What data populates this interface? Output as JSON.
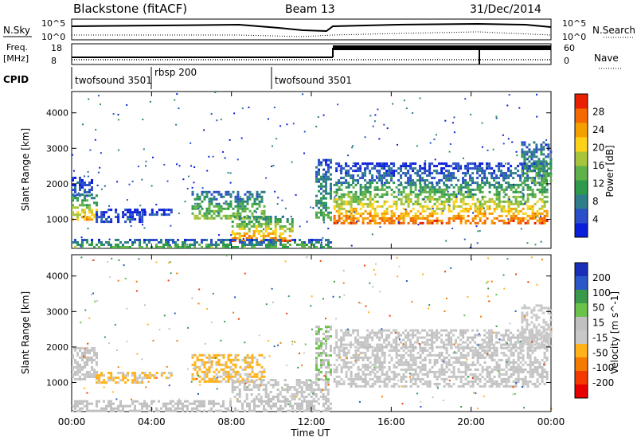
{
  "header": {
    "station": "Blackstone (fitACF)",
    "beam": "Beam 13",
    "date": "31/Dec/2014"
  },
  "top_panels": {
    "nsky": {
      "left_label": "N.Sky",
      "right_label": "N.Search",
      "ticks": [
        "10^5",
        "10^0"
      ]
    },
    "freq": {
      "left_label_1": "Freq.",
      "left_label_2": "[MHz]",
      "right_label": "Nave",
      "left_ticks": [
        "18",
        "8"
      ],
      "right_ticks": [
        "60",
        "0"
      ]
    },
    "cpid": {
      "label": "CPID",
      "segments": [
        {
          "name": "twofsound 3501",
          "start": "00:00",
          "end": "04:00"
        },
        {
          "name": "rbsp 200",
          "start": "04:00",
          "end": "10:00"
        },
        {
          "name": "twofsound 3501",
          "start": "10:00",
          "end": "24:00"
        }
      ]
    }
  },
  "colors": {
    "power_scale": [
      "#0a1fd9",
      "#2a4fc8",
      "#2e7d8a",
      "#2f9a4c",
      "#5fb14a",
      "#a8c43c",
      "#ffd21a",
      "#f4a100",
      "#f46a00",
      "#e81f00"
    ],
    "velocity_scale": [
      "#1a2fb8",
      "#2a58c8",
      "#3a9a4a",
      "#6ac24a",
      "#c0c0c0",
      "#c8c8c8",
      "#ffb21a",
      "#f47a00",
      "#f43a00",
      "#e80000"
    ]
  },
  "chart_data": [
    {
      "type": "heatmap",
      "title": "",
      "xlabel": "Time UT",
      "ylabel": "Slant Range [km]",
      "x_ticks": [
        "00:00",
        "04:00",
        "08:00",
        "12:00",
        "16:00",
        "20:00",
        "00:00"
      ],
      "xlim_hours": [
        0,
        24
      ],
      "y_ticks": [
        "1000",
        "2000",
        "3000",
        "4000"
      ],
      "ylim": [
        180,
        4600
      ],
      "colorbar_label": "Power [dB]",
      "colorbar_ticks": [
        "4",
        "8",
        "12",
        "16",
        "20",
        "24",
        "28"
      ],
      "colorbar_range": [
        0,
        30
      ],
      "regions": [
        {
          "t0": 0.0,
          "t1": 1.3,
          "r0": 1000,
          "r1": 1700,
          "peak": 22
        },
        {
          "t0": 0.0,
          "t1": 1.0,
          "r0": 1700,
          "r1": 2200,
          "peak": 6
        },
        {
          "t0": 1.2,
          "t1": 3.7,
          "r0": 900,
          "r1": 1300,
          "peak": 5
        },
        {
          "t0": 3.5,
          "t1": 5.0,
          "r0": 1100,
          "r1": 1300,
          "peak": 6
        },
        {
          "t0": 6.0,
          "t1": 9.6,
          "r0": 1000,
          "r1": 1800,
          "peak": 16
        },
        {
          "t0": 8.0,
          "t1": 11.0,
          "r0": 400,
          "r1": 1100,
          "peak": 26
        },
        {
          "t0": 0.0,
          "t1": 13.0,
          "r0": 200,
          "r1": 450,
          "peak": 14
        },
        {
          "t0": 12.2,
          "t1": 13.0,
          "r0": 1000,
          "r1": 2700,
          "peak": 12
        },
        {
          "t0": 13.1,
          "t1": 23.8,
          "r0": 900,
          "r1": 2000,
          "peak": 26
        },
        {
          "t0": 13.2,
          "t1": 23.8,
          "r0": 2000,
          "r1": 2600,
          "peak": 8
        },
        {
          "t0": 22.5,
          "t1": 24.0,
          "r0": 2000,
          "r1": 3200,
          "peak": 14
        }
      ]
    },
    {
      "type": "heatmap",
      "title": "",
      "xlabel": "Time UT",
      "ylabel": "Slant Range [km]",
      "x_ticks": [
        "00:00",
        "04:00",
        "08:00",
        "12:00",
        "16:00",
        "20:00",
        "00:00"
      ],
      "xlim_hours": [
        0,
        24
      ],
      "y_ticks": [
        "1000",
        "2000",
        "3000",
        "4000"
      ],
      "ylim": [
        180,
        4600
      ],
      "colorbar_label": "Velocity [m s^-1]",
      "colorbar_ticks": [
        "200",
        "100",
        "50",
        "15",
        "-15",
        "-50",
        "-100",
        "-200"
      ],
      "colorbar_range": [
        -250,
        250
      ],
      "regions": [
        {
          "t0": 0.0,
          "t1": 1.3,
          "r0": 1100,
          "r1": 2000,
          "velocity": 0
        },
        {
          "t0": 1.2,
          "t1": 3.7,
          "r0": 1000,
          "r1": 1300,
          "velocity": -60
        },
        {
          "t0": 3.5,
          "t1": 5.0,
          "r0": 1100,
          "r1": 1300,
          "velocity": -60
        },
        {
          "t0": 6.0,
          "t1": 9.6,
          "r0": 1000,
          "r1": 1800,
          "velocity": -60
        },
        {
          "t0": 8.0,
          "t1": 12.8,
          "r0": 500,
          "r1": 1100,
          "velocity": 0
        },
        {
          "t0": 0.0,
          "t1": 13.0,
          "r0": 200,
          "r1": 500,
          "velocity": 30
        },
        {
          "t0": 12.2,
          "t1": 13.0,
          "r0": 1100,
          "r1": 2600,
          "velocity": 50
        },
        {
          "t0": 13.1,
          "t1": 23.8,
          "r0": 900,
          "r1": 2000,
          "velocity": 0
        },
        {
          "t0": 13.2,
          "t1": 23.8,
          "r0": 2000,
          "r1": 2500,
          "velocity": 0
        },
        {
          "t0": 22.5,
          "t1": 24.0,
          "r0": 2000,
          "r1": 3200,
          "velocity": -30
        }
      ]
    }
  ]
}
